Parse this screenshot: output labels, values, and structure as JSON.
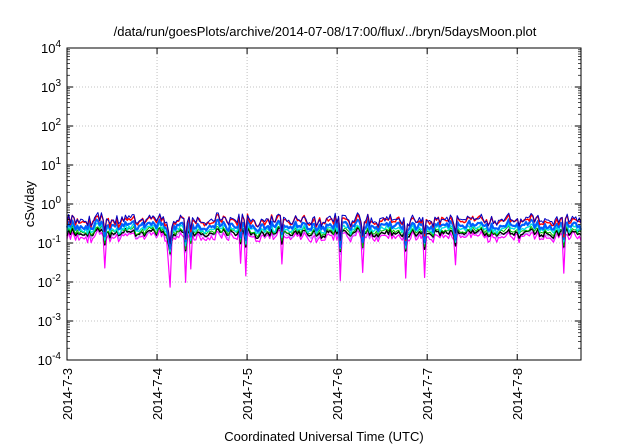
{
  "chart_data": {
    "type": "line",
    "title": "/data/run/goesPlots/archive/2014-07-08/17:00/flux/../bryn/5daysMoon.plot",
    "xlabel": "Coordinated Universal Time (UTC)",
    "ylabel": "cSv/day",
    "y_scale": "log",
    "ylim": [
      0.0001,
      10000
    ],
    "y_ticks": [
      {
        "value": 0.0001,
        "base": "10",
        "exp": "-4"
      },
      {
        "value": 0.001,
        "base": "10",
        "exp": "-3"
      },
      {
        "value": 0.01,
        "base": "10",
        "exp": "-2"
      },
      {
        "value": 0.1,
        "base": "10",
        "exp": "-1"
      },
      {
        "value": 1,
        "base": "10",
        "exp": "0"
      },
      {
        "value": 10,
        "base": "10",
        "exp": "1"
      },
      {
        "value": 100,
        "base": "10",
        "exp": "2"
      },
      {
        "value": 1000,
        "base": "10",
        "exp": "3"
      },
      {
        "value": 10000,
        "base": "10",
        "exp": "4"
      }
    ],
    "x_ticks": [
      "2014-7-3",
      "2014-7-4",
      "2014-7-5",
      "2014-7-6",
      "2014-7-7",
      "2014-7-8"
    ],
    "x_range_days": [
      "2014-07-03 00:00",
      "2014-07-08 17:00"
    ],
    "grid": true,
    "legend": "none",
    "series": [
      {
        "color": "#ff00ff",
        "base": 0.13,
        "amp": 0.25,
        "width": 1.2
      },
      {
        "color": "#c080ff",
        "base": 0.155,
        "amp": 0.22,
        "width": 1.0
      },
      {
        "color": "#000000",
        "base": 0.165,
        "amp": 0.2,
        "width": 1.4
      },
      {
        "color": "#00c000",
        "base": 0.185,
        "amp": 0.2,
        "width": 1.0
      },
      {
        "color": "#00e0e0",
        "base": 0.21,
        "amp": 0.22,
        "width": 1.4
      },
      {
        "color": "#0060ff",
        "base": 0.25,
        "amp": 0.24,
        "width": 2.2
      },
      {
        "color": "#ff0000",
        "base": 0.33,
        "amp": 0.26,
        "width": 1.4
      },
      {
        "color": "#0000c0",
        "base": 0.35,
        "amp": 0.26,
        "width": 1.0
      }
    ]
  }
}
